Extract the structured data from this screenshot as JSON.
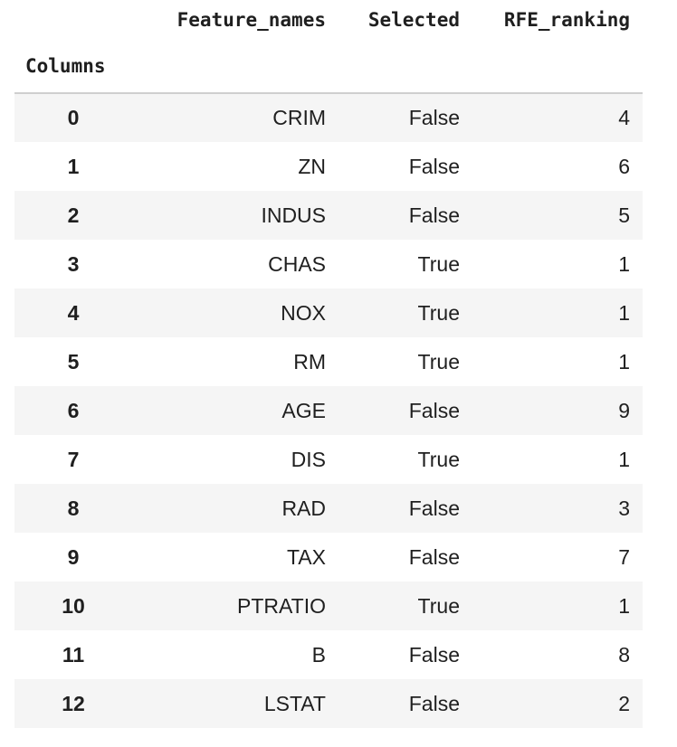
{
  "table": {
    "index_name": "Columns",
    "columns": [
      "Feature_names",
      "Selected",
      "RFE_ranking"
    ],
    "rows": [
      {
        "index": "0",
        "feature": "CRIM",
        "selected": "False",
        "rank": "4"
      },
      {
        "index": "1",
        "feature": "ZN",
        "selected": "False",
        "rank": "6"
      },
      {
        "index": "2",
        "feature": "INDUS",
        "selected": "False",
        "rank": "5"
      },
      {
        "index": "3",
        "feature": "CHAS",
        "selected": "True",
        "rank": "1"
      },
      {
        "index": "4",
        "feature": "NOX",
        "selected": "True",
        "rank": "1"
      },
      {
        "index": "5",
        "feature": "RM",
        "selected": "True",
        "rank": "1"
      },
      {
        "index": "6",
        "feature": "AGE",
        "selected": "False",
        "rank": "9"
      },
      {
        "index": "7",
        "feature": "DIS",
        "selected": "True",
        "rank": "1"
      },
      {
        "index": "8",
        "feature": "RAD",
        "selected": "False",
        "rank": "3"
      },
      {
        "index": "9",
        "feature": "TAX",
        "selected": "False",
        "rank": "7"
      },
      {
        "index": "10",
        "feature": "PTRATIO",
        "selected": "True",
        "rank": "1"
      },
      {
        "index": "11",
        "feature": "B",
        "selected": "False",
        "rank": "8"
      },
      {
        "index": "12",
        "feature": "LSTAT",
        "selected": "False",
        "rank": "2"
      }
    ]
  },
  "colors": {
    "stripe": "#f5f5f5",
    "text": "#1f1f1f",
    "header_rule": "#cfcfcf"
  }
}
